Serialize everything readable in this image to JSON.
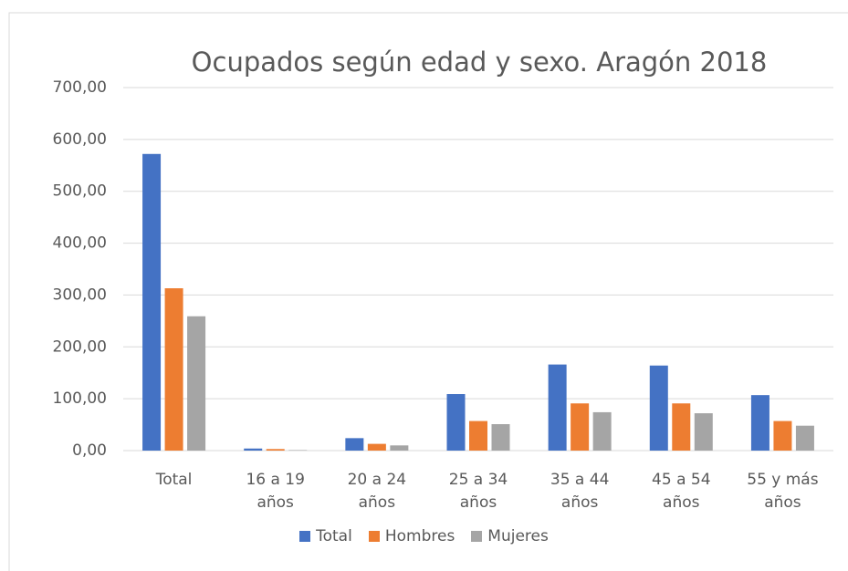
{
  "chart_data": {
    "type": "bar",
    "title": "Ocupados según edad y sexo. Aragón 2018",
    "categories": [
      "Total",
      "16 a 19 años",
      "20 a 24 años",
      "25 a 34 años",
      "35 a 44 años",
      "45 a 54 años",
      "55 y más años"
    ],
    "series": [
      {
        "name": "Total",
        "color": "#4472c4",
        "values": [
          572,
          4,
          24,
          109,
          166,
          164,
          107
        ]
      },
      {
        "name": "Hombres",
        "color": "#ed7d31",
        "values": [
          313,
          3,
          13,
          57,
          91,
          91,
          57
        ]
      },
      {
        "name": "Mujeres",
        "color": "#a5a5a5",
        "values": [
          259,
          1,
          10,
          51,
          74,
          72,
          48
        ]
      }
    ],
    "ylim": [
      0,
      700
    ],
    "yticks": [
      {
        "value": 0,
        "label": "0,00"
      },
      {
        "value": 100,
        "label": "100,00"
      },
      {
        "value": 200,
        "label": "200,00"
      },
      {
        "value": 300,
        "label": "300,00"
      },
      {
        "value": 400,
        "label": "400,00"
      },
      {
        "value": 500,
        "label": "500,00"
      },
      {
        "value": 600,
        "label": "600,00"
      },
      {
        "value": 700,
        "label": "700,00"
      }
    ],
    "grid": true,
    "legend": "bottom"
  }
}
